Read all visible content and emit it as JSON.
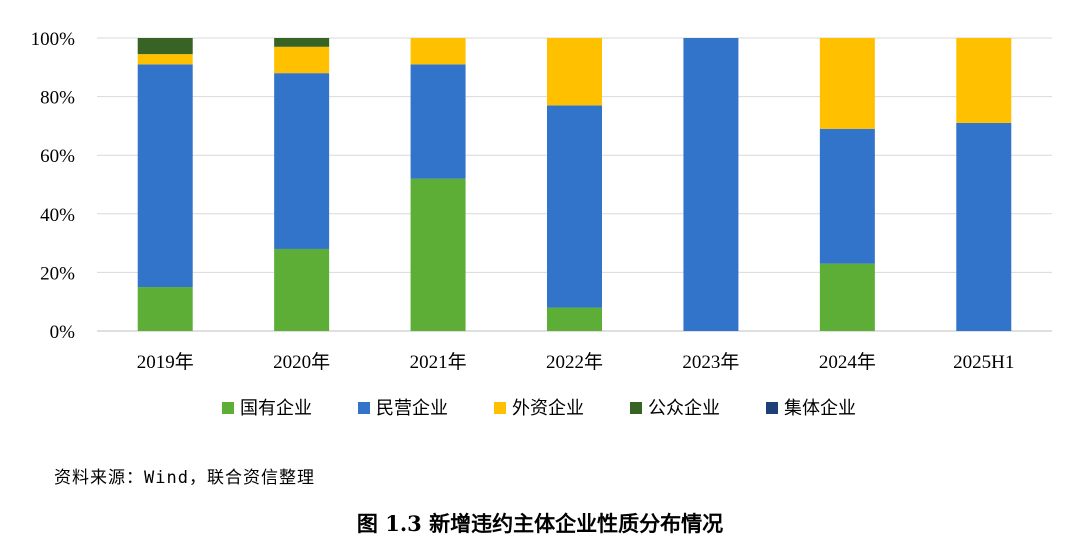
{
  "chart_data": {
    "type": "bar",
    "stacked": true,
    "categories": [
      "2019年",
      "2020年",
      "2021年",
      "2022年",
      "2023年",
      "2024年",
      "2025H1"
    ],
    "series": [
      {
        "name": "国有企业",
        "color": "#5DAE37",
        "values": [
          15,
          28,
          52,
          8,
          0,
          23,
          0
        ]
      },
      {
        "name": "民营企业",
        "color": "#3374CB",
        "values": [
          76,
          60,
          39,
          69,
          100,
          46,
          71
        ]
      },
      {
        "name": "外资企业",
        "color": "#FFC000",
        "values": [
          3.5,
          9,
          9,
          23,
          0,
          31,
          29
        ]
      },
      {
        "name": "公众企业",
        "color": "#376325",
        "values": [
          5.5,
          3,
          0,
          0,
          0,
          0,
          0
        ]
      },
      {
        "name": "集体企业",
        "color": "#1F3F77",
        "values": [
          0,
          0,
          0,
          0,
          0,
          0,
          0
        ]
      }
    ],
    "yticks": [
      "0%",
      "20%",
      "40%",
      "60%",
      "80%",
      "100%"
    ],
    "ylim": [
      0,
      100
    ],
    "grid": true,
    "legend_position": "bottom"
  },
  "source_note": "资料来源：Wind，联合资信整理",
  "caption": "图 1.3    新增违约主体企业性质分布情况"
}
